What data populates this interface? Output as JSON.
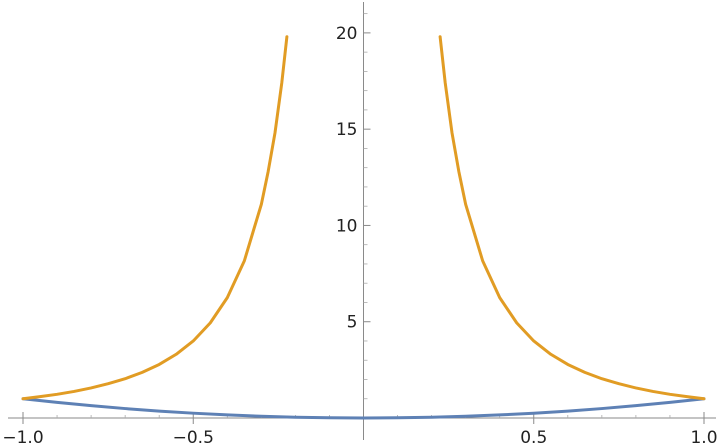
{
  "chart_data": {
    "type": "line",
    "title": "",
    "xlabel": "",
    "ylabel": "",
    "xlim": [
      -1.0,
      1.0
    ],
    "ylim": [
      0,
      21.5
    ],
    "grid": false,
    "x_ticks": [
      -1.0,
      -0.5,
      0.5,
      1.0
    ],
    "x_tick_labels": [
      "−1.0",
      "−0.5",
      "0.5",
      "1.0"
    ],
    "y_ticks": [
      5,
      10,
      15,
      20
    ],
    "y_tick_labels": [
      "5",
      "10",
      "15",
      "20"
    ],
    "series": [
      {
        "color": "#5e81b5",
        "x": [
          -1.0,
          -0.9,
          -0.8,
          -0.7,
          -0.6,
          -0.5,
          -0.4,
          -0.3,
          -0.2,
          -0.1,
          0.0,
          0.1,
          0.2,
          0.3,
          0.4,
          0.5,
          0.6,
          0.7,
          0.8,
          0.9,
          1.0
        ],
        "y": [
          1.0,
          0.81,
          0.64,
          0.49,
          0.36,
          0.25,
          0.16,
          0.09,
          0.04,
          0.01,
          0.0,
          0.01,
          0.04,
          0.09,
          0.16,
          0.25,
          0.36,
          0.49,
          0.64,
          0.81,
          1.0
        ]
      },
      {
        "color": "#e19c24",
        "segments": [
          {
            "x": [
              -1.0,
              -0.95,
              -0.9,
              -0.85,
              -0.8,
              -0.75,
              -0.7,
              -0.65,
              -0.6,
              -0.55,
              -0.5,
              -0.45,
              -0.4,
              -0.35,
              -0.3,
              -0.28,
              -0.26,
              -0.24,
              -0.225
            ],
            "y": [
              1.0,
              1.11,
              1.23,
              1.38,
              1.56,
              1.78,
              2.04,
              2.37,
              2.78,
              3.31,
              4.0,
              4.94,
              6.25,
              8.16,
              11.1,
              12.8,
              14.8,
              17.4,
              19.8
            ]
          },
          {
            "x": [
              0.225,
              0.24,
              0.26,
              0.28,
              0.3,
              0.35,
              0.4,
              0.45,
              0.5,
              0.55,
              0.6,
              0.65,
              0.7,
              0.75,
              0.8,
              0.85,
              0.9,
              0.95,
              1.0
            ],
            "y": [
              19.8,
              17.4,
              14.8,
              12.8,
              11.1,
              8.16,
              6.25,
              4.94,
              4.0,
              3.31,
              2.78,
              2.37,
              2.04,
              1.78,
              1.56,
              1.38,
              1.23,
              1.11,
              1.0
            ]
          }
        ]
      }
    ]
  }
}
